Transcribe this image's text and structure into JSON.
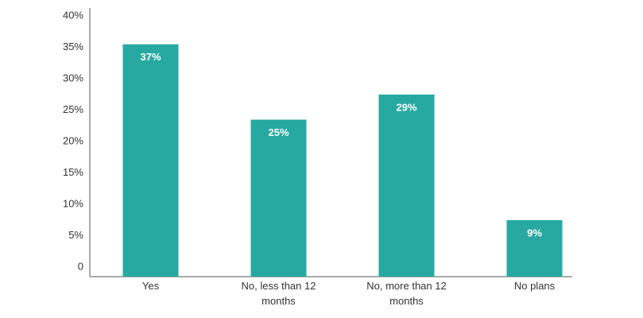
{
  "chart_data": {
    "type": "bar",
    "categories": [
      "Yes",
      "No, less than 12 months",
      "No, more than 12 months",
      "No plans"
    ],
    "values": [
      37,
      25,
      29,
      9
    ],
    "value_labels": [
      "37%",
      "25%",
      "29%",
      "9%"
    ],
    "color": "#27a9a1",
    "ylim": [
      0,
      40
    ],
    "yticks": [
      0,
      {
        "value": 5,
        "label": "5%"
      },
      {
        "value": 10,
        "label": "10%"
      },
      {
        "value": 15,
        "label": "15%"
      },
      {
        "value": 20,
        "label": "20%"
      },
      {
        "value": 25,
        "label": "25%"
      },
      {
        "value": 30,
        "label": "30%"
      },
      {
        "value": 35,
        "label": "35%"
      },
      {
        "value": 40,
        "label": "40%"
      }
    ],
    "grid": false
  }
}
